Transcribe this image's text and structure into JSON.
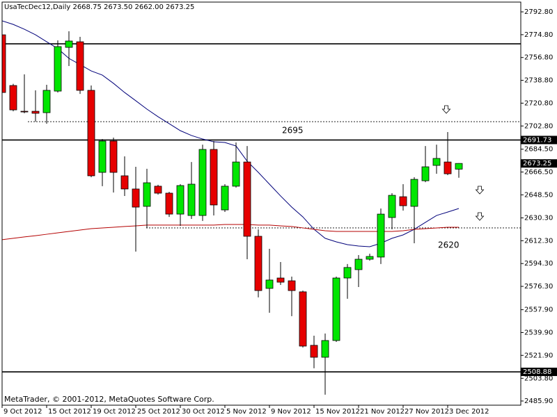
{
  "chart_data": {
    "type": "candlestick",
    "title": "UsaTecDec12,Daily 2668.75 2673.50 2662.00 2673.25",
    "watermark": "MetaTrader, © 2001-2012, MetaQuotes Software Corp.",
    "categories": [
      "9 Oct 2012",
      null,
      null,
      null,
      "15 Oct 2012",
      null,
      null,
      null,
      "19 Oct 2012",
      null,
      null,
      null,
      "25 Oct 2012",
      null,
      null,
      null,
      "30 Oct 2012",
      null,
      null,
      null,
      "5 Nov 2012",
      null,
      null,
      null,
      "9 Nov 2012",
      null,
      null,
      null,
      "15 Nov 2012",
      null,
      null,
      null,
      "21 Nov 2012",
      null,
      null,
      null,
      "27 Nov 2012",
      null,
      null,
      null,
      "3 Dec 2012",
      null
    ],
    "open": [
      2774.7,
      2734.7,
      2714.4,
      2714.4,
      2713.3,
      2730.3,
      2764.8,
      2769.2,
      2730.9,
      2666.2,
      2690.9,
      2663.5,
      2653.1,
      2639.4,
      2655.3,
      2649.8,
      2633.3,
      2632.2,
      2632.2,
      2684.3,
      2636.6,
      2655.3,
      2674.4,
      2615.8,
      2574.7,
      2582.9,
      2580.7,
      2572.0,
      2529.8,
      2520.4,
      2533.6,
      2582.9,
      2589.5,
      2597.7,
      2599.4,
      2630.6,
      2647.0,
      2639.4,
      2659.6,
      2671.7,
      2674.4,
      2668.75
    ],
    "high": [
      2785.7,
      2736.0,
      2743.5,
      2730.9,
      2735.3,
      2770.3,
      2777.5,
      2773.1,
      2734.7,
      2692.5,
      2693.6,
      2678.8,
      2670.6,
      2669.0,
      2656.4,
      2650.9,
      2656.9,
      2674.4,
      2688.1,
      2690.9,
      2656.9,
      2689.8,
      2687.0,
      2621.3,
      2605.9,
      2595.5,
      2584.0,
      2573.0,
      2537.4,
      2539.1,
      2584.0,
      2593.9,
      2601.0,
      2602.1,
      2637.7,
      2649.8,
      2656.9,
      2662.4,
      2687.0,
      2688.1,
      2698.0,
      2673.5
    ],
    "low": [
      2728.1,
      2714.4,
      2712.8,
      2706.2,
      2704.6,
      2729.2,
      2750.1,
      2728.1,
      2662.4,
      2655.3,
      2650.3,
      2647.6,
      2603.7,
      2622.4,
      2648.7,
      2631.1,
      2624.0,
      2629.5,
      2627.9,
      2632.2,
      2635.0,
      2654.2,
      2597.7,
      2567.6,
      2555.5,
      2577.4,
      2552.8,
      2528.1,
      2511.7,
      2490.9,
      2532.5,
      2566.5,
      2575.8,
      2596.6,
      2593.9,
      2621.3,
      2636.1,
      2610.3,
      2658.5,
      2665.1,
      2664.0,
      2662.0
    ],
    "close": [
      2729.2,
      2715.5,
      2714.0,
      2712.8,
      2730.9,
      2765.4,
      2769.8,
      2730.9,
      2663.5,
      2690.9,
      2666.2,
      2653.1,
      2638.8,
      2658.0,
      2649.8,
      2633.3,
      2655.8,
      2656.9,
      2684.3,
      2640.5,
      2655.3,
      2674.4,
      2615.8,
      2573.0,
      2581.3,
      2579.6,
      2573.0,
      2529.2,
      2520.4,
      2533.6,
      2582.9,
      2591.2,
      2597.7,
      2599.9,
      2633.3,
      2648.1,
      2639.9,
      2660.7,
      2670.6,
      2677.2,
      2665.1,
      2673.25
    ],
    "bull_color": "#00e600",
    "bear_color": "#e60000",
    "lines": [
      {
        "color": "#00007a",
        "values": [
          2785.7,
          2782.9,
          2779.1,
          2774.7,
          2769.2,
          2763.8,
          2756.1,
          2751.2,
          2746.2,
          2742.9,
          2736.4,
          2729.2,
          2722.7,
          2716.1,
          2710.1,
          2704.6,
          2699.1,
          2695.3,
          2692.5,
          2690.3,
          2689.8,
          2687.0,
          2675.0,
          2666.2,
          2656.9,
          2647.6,
          2638.8,
          2631.1,
          2621.3,
          2614.2,
          2611.4,
          2609.2,
          2608.1,
          2607.6,
          2610.3,
          2614.2,
          2616.9,
          2621.3,
          2626.8,
          2632.2,
          2634.9,
          2637.7
        ]
      },
      {
        "color": "#b40000",
        "values": [
          2613.1,
          2614.2,
          2615.3,
          2616.3,
          2617.4,
          2618.5,
          2619.6,
          2620.7,
          2621.8,
          2622.4,
          2622.9,
          2623.5,
          2624.0,
          2624.6,
          2624.6,
          2624.6,
          2624.6,
          2624.6,
          2624.6,
          2624.6,
          2625.1,
          2625.1,
          2625.1,
          2624.6,
          2624.6,
          2624.0,
          2623.5,
          2622.4,
          2621.3,
          2620.2,
          2619.6,
          2619.6,
          2619.6,
          2619.6,
          2619.6,
          2619.6,
          2620.2,
          2621.3,
          2621.8,
          2622.4,
          2622.9,
          2622.9
        ]
      }
    ],
    "hlines": [
      {
        "value": 2767.6,
        "style": "solid",
        "tag": false
      },
      {
        "value": 2691.73,
        "style": "solid",
        "tag": true
      },
      {
        "value": 2508.88,
        "style": "solid",
        "tag": true
      },
      {
        "value": 2706.2,
        "style": "dotted",
        "tag": false
      },
      {
        "value": 2622.4,
        "style": "dotted",
        "tag": false
      }
    ],
    "annotations": [
      "2695",
      "2620"
    ],
    "ylim": [
      2482.6,
      2800.5
    ],
    "yticks": [
      {
        "value": 2792.8,
        "label": "2792.80"
      },
      {
        "value": 2774.8,
        "label": "2774.80"
      },
      {
        "value": 2756.8,
        "label": "2756.80"
      },
      {
        "value": 2738.8,
        "label": "2738.80"
      },
      {
        "value": 2720.8,
        "label": "2720.80"
      },
      {
        "value": 2702.8,
        "label": "2702.80"
      },
      {
        "value": 2684.5,
        "label": "2684.50"
      },
      {
        "value": 2666.5,
        "label": "2666.50"
      },
      {
        "value": 2648.5,
        "label": "2648.50"
      },
      {
        "value": 2630.3,
        "label": "2630.30"
      },
      {
        "value": 2612.3,
        "label": "2612.30"
      },
      {
        "value": 2594.3,
        "label": "2594.30"
      },
      {
        "value": 2576.3,
        "label": "2576.30"
      },
      {
        "value": 2557.9,
        "label": "2557.90"
      },
      {
        "value": 2539.9,
        "label": "2539.90"
      },
      {
        "value": 2521.9,
        "label": "2521.90"
      },
      {
        "value": 2503.8,
        "label": "2503.80"
      },
      {
        "value": 2485.9,
        "label": "2485.90"
      }
    ],
    "grid": false
  }
}
